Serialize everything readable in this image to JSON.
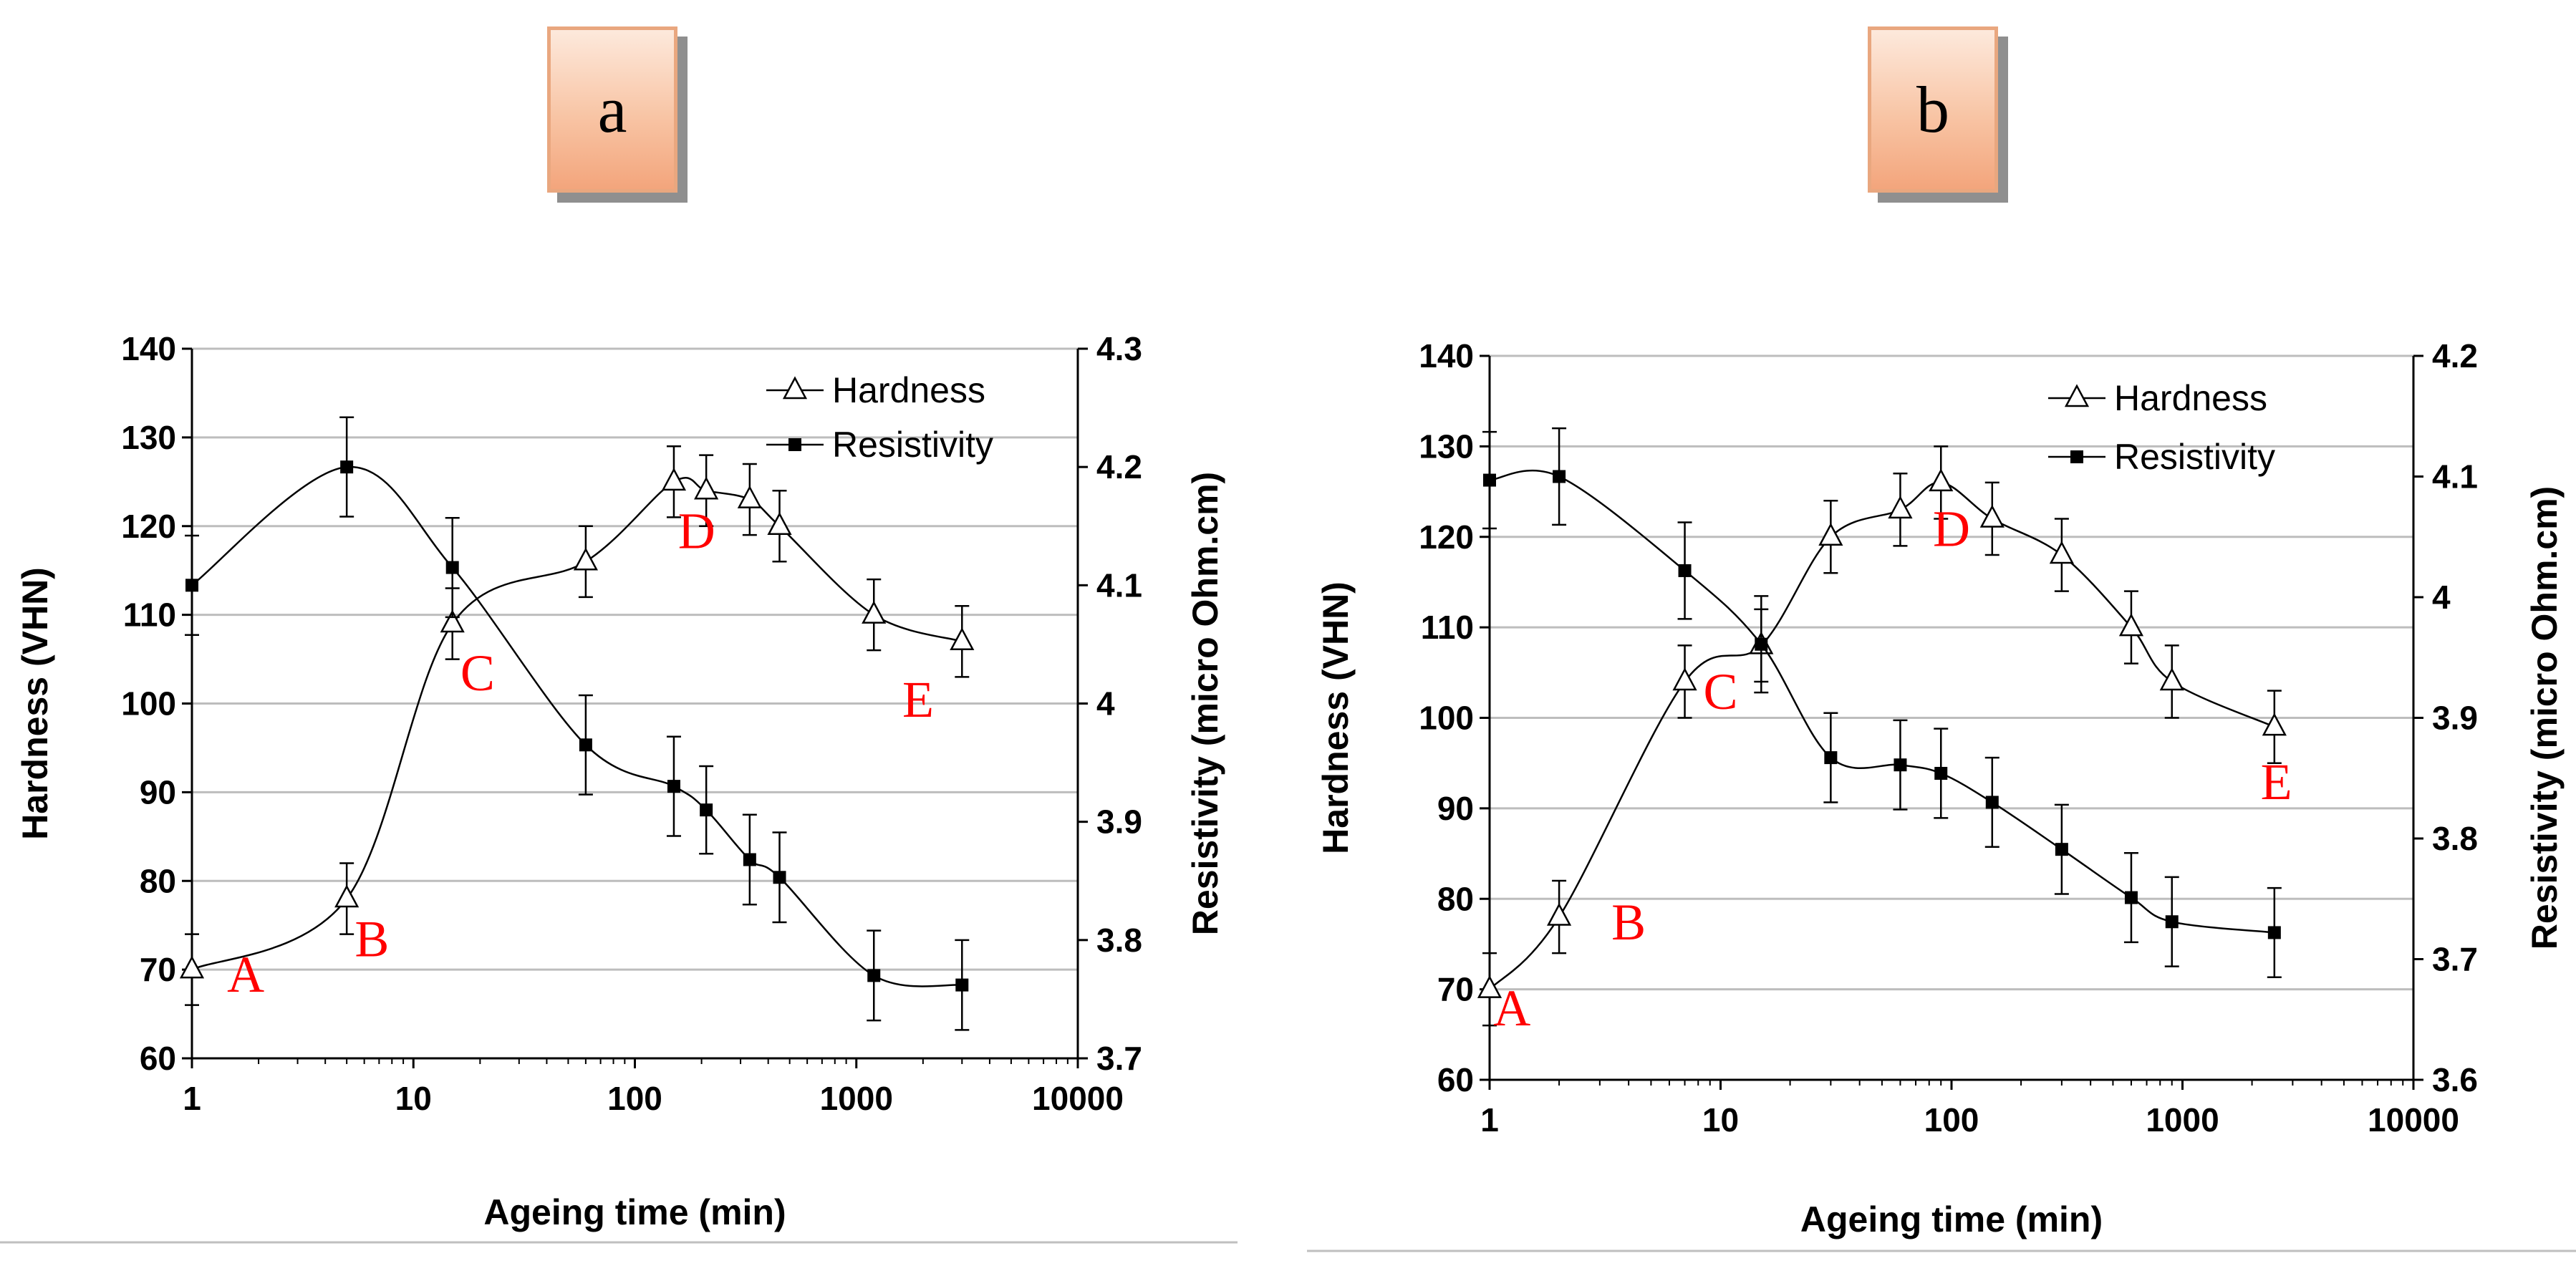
{
  "panel_labels": [
    "a",
    "b"
  ],
  "colors": {
    "annotation": "#ff0000",
    "gridline": "#bdbdbd",
    "series": "#000000",
    "label_border": "#e9a77f"
  },
  "chart_data": [
    {
      "type": "line",
      "panel": "a",
      "xlabel": "Ageing time (min)",
      "ylabel": "Hardness (VHN)",
      "y2label": "Resistivity (micro Ohm.cm)",
      "xscale": "log",
      "xlim": [
        1,
        10000
      ],
      "ylim": [
        60,
        140
      ],
      "y2lim": [
        3.7,
        4.3
      ],
      "xticks": [
        1,
        10,
        100,
        1000,
        10000
      ],
      "xtick_labels": [
        "1",
        "10",
        "100",
        "1000",
        "10000"
      ],
      "yticks": [
        60,
        70,
        80,
        90,
        100,
        110,
        120,
        130,
        140
      ],
      "ytick_labels": [
        "60",
        "70",
        "80",
        "90",
        "100",
        "110",
        "120",
        "130",
        "140"
      ],
      "y2ticks": [
        3.7,
        3.8,
        3.9,
        4.0,
        4.1,
        4.2,
        4.3
      ],
      "y2tick_labels": [
        "3.7",
        "3.8",
        "3.9",
        "4",
        "4.1",
        "4.2",
        "4.3"
      ],
      "grid": "horizontal",
      "legend_position": "top-right",
      "series": [
        {
          "name": "Hardness",
          "axis": "left",
          "marker": "open-triangle",
          "x": [
            1,
            5,
            15,
            60,
            150,
            210,
            330,
            450,
            1200,
            3000
          ],
          "y": [
            70,
            78,
            109,
            116,
            125,
            124,
            123,
            120,
            110,
            107
          ],
          "err": [
            4,
            4,
            4,
            4,
            4,
            4,
            4,
            4,
            4,
            4
          ]
        },
        {
          "name": "Resistivity",
          "axis": "right",
          "marker": "filled-square",
          "x": [
            1,
            5,
            15,
            60,
            150,
            210,
            330,
            450,
            1200,
            3000
          ],
          "y": [
            4.1,
            4.2,
            4.115,
            3.965,
            3.93,
            3.91,
            3.868,
            3.853,
            3.77,
            3.762
          ],
          "err": [
            0.042,
            0.042,
            0.042,
            0.042,
            0.042,
            0.037,
            0.038,
            0.038,
            0.038,
            0.038
          ]
        }
      ],
      "annotations": [
        {
          "text": "A",
          "x": 1.75,
          "y": 67.5
        },
        {
          "text": "B",
          "x": 6.5,
          "y": 71.5
        },
        {
          "text": "C",
          "x": 19.5,
          "y": 101.5
        },
        {
          "text": "D",
          "x": 190,
          "y": 117.5
        },
        {
          "text": "E",
          "x": 1900,
          "y": 98.5
        }
      ]
    },
    {
      "type": "line",
      "panel": "b",
      "xlabel": "Ageing time (min)",
      "ylabel": "Hardness (VHN)",
      "y2label": "Resistivity (micro Ohm.cm)",
      "xscale": "log",
      "xlim": [
        1,
        10000
      ],
      "ylim": [
        60,
        140
      ],
      "y2lim": [
        3.6,
        4.2
      ],
      "xticks": [
        1,
        10,
        100,
        1000,
        10000
      ],
      "xtick_labels": [
        "1",
        "10",
        "100",
        "1000",
        "10000"
      ],
      "yticks": [
        60,
        70,
        80,
        90,
        100,
        110,
        120,
        130,
        140
      ],
      "ytick_labels": [
        "60",
        "70",
        "80",
        "90",
        "100",
        "110",
        "120",
        "130",
        "140"
      ],
      "y2ticks": [
        3.6,
        3.7,
        3.8,
        3.9,
        4.0,
        4.1,
        4.2
      ],
      "y2tick_labels": [
        "3.6",
        "3.7",
        "3.8",
        "3.9",
        "4",
        "4.1",
        "4.2"
      ],
      "grid": "horizontal",
      "legend_position": "top-right",
      "series": [
        {
          "name": "Hardness",
          "axis": "left",
          "marker": "open-triangle",
          "x": [
            1,
            2,
            7,
            15,
            30,
            60,
            90,
            150,
            300,
            600,
            900,
            2500
          ],
          "y": [
            70,
            78,
            104,
            108,
            120,
            123,
            126,
            122,
            118,
            110,
            104,
            99
          ],
          "err": [
            4,
            4,
            4,
            4,
            4,
            4,
            4,
            4,
            4,
            4,
            4,
            4
          ]
        },
        {
          "name": "Resistivity",
          "axis": "right",
          "marker": "filled-square",
          "x": [
            1,
            2,
            7,
            15,
            30,
            60,
            90,
            150,
            300,
            600,
            900,
            2500
          ],
          "y": [
            4.097,
            4.1,
            4.022,
            3.961,
            3.867,
            3.861,
            3.854,
            3.83,
            3.791,
            3.751,
            3.731,
            3.722
          ],
          "err": [
            0.04,
            0.04,
            0.04,
            0.04,
            0.037,
            0.037,
            0.037,
            0.037,
            0.037,
            0.037,
            0.037,
            0.037
          ]
        }
      ],
      "annotations": [
        {
          "text": "A",
          "x": 1.25,
          "y": 66
        },
        {
          "text": "B",
          "x": 4.0,
          "y": 75.5
        },
        {
          "text": "C",
          "x": 10,
          "y": 101
        },
        {
          "text": "D",
          "x": 100,
          "y": 119
        },
        {
          "text": "E",
          "x": 2550,
          "y": 91
        }
      ]
    }
  ]
}
